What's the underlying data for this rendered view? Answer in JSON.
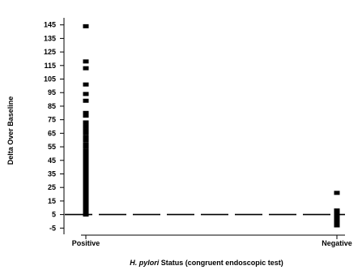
{
  "chart_data": {
    "type": "scatter",
    "title": "",
    "xlabel": {
      "italic": "H. pylori",
      "rest": " Status (congruent endoscopic test)"
    },
    "ylabel": "Delta Over Baseline",
    "categories": [
      "Positive",
      "Negative"
    ],
    "yticks": [
      -5,
      5,
      15,
      25,
      35,
      45,
      55,
      65,
      75,
      85,
      95,
      105,
      115,
      125,
      135,
      145
    ],
    "ylim": [
      -9,
      149
    ],
    "grid": false,
    "reference_line": {
      "y": 5,
      "style": "dashed"
    },
    "series": [
      {
        "category": "Positive",
        "values": [
          144,
          118,
          113,
          101,
          94,
          89,
          80,
          78,
          73,
          70,
          67,
          65,
          62,
          60,
          57,
          55,
          52,
          50,
          48,
          46,
          44,
          42,
          40,
          38,
          36,
          34,
          32,
          30,
          28,
          26,
          24,
          22,
          20,
          18,
          16,
          14,
          12,
          10,
          8,
          6,
          5
        ]
      },
      {
        "category": "Negative",
        "values": [
          21,
          8,
          6,
          5,
          4,
          3,
          2,
          1,
          0,
          -1,
          -2,
          -3
        ]
      }
    ]
  }
}
